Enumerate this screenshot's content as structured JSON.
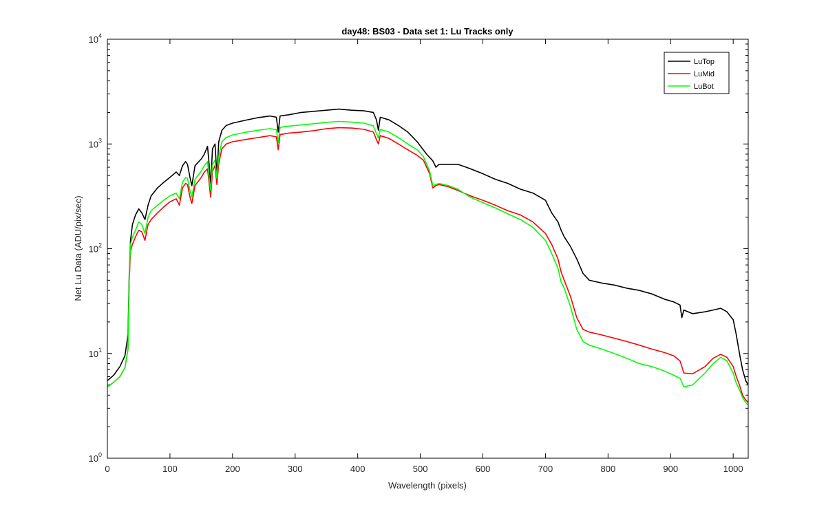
{
  "chart_data": {
    "type": "line",
    "title": "day48: BS03 - Data set 1: Lu Tracks only",
    "xlabel": "Wavelength (pixels)",
    "ylabel": "Net Lu Data (ADU/pix/sec)",
    "xlim": [
      0,
      1024
    ],
    "ylim": [
      1,
      10000
    ],
    "yscale": "log",
    "grid": false,
    "legend_position": "top-right",
    "x_ticks": [
      "0",
      "100",
      "200",
      "300",
      "400",
      "500",
      "600",
      "700",
      "800",
      "900",
      "1000"
    ],
    "y_ticks": [
      {
        "base": "10",
        "exp": "0"
      },
      {
        "base": "10",
        "exp": "1"
      },
      {
        "base": "10",
        "exp": "2"
      },
      {
        "base": "10",
        "exp": "3"
      },
      {
        "base": "10",
        "exp": "4"
      }
    ],
    "series": [
      {
        "name": "LuTop",
        "color": "#000000",
        "points": [
          [
            0,
            5.5
          ],
          [
            10,
            6.2
          ],
          [
            20,
            7.5
          ],
          [
            28,
            9.5
          ],
          [
            33,
            15
          ],
          [
            35,
            60
          ],
          [
            37,
            120
          ],
          [
            40,
            170
          ],
          [
            45,
            210
          ],
          [
            50,
            240
          ],
          [
            55,
            220
          ],
          [
            60,
            190
          ],
          [
            65,
            260
          ],
          [
            70,
            320
          ],
          [
            80,
            380
          ],
          [
            90,
            430
          ],
          [
            100,
            480
          ],
          [
            110,
            540
          ],
          [
            115,
            500
          ],
          [
            120,
            620
          ],
          [
            125,
            680
          ],
          [
            128,
            640
          ],
          [
            132,
            480
          ],
          [
            135,
            400
          ],
          [
            140,
            620
          ],
          [
            150,
            720
          ],
          [
            155,
            800
          ],
          [
            160,
            950
          ],
          [
            163,
            600
          ],
          [
            165,
            400
          ],
          [
            168,
            900
          ],
          [
            172,
            1000
          ],
          [
            175,
            500
          ],
          [
            178,
            1050
          ],
          [
            183,
            1350
          ],
          [
            190,
            1500
          ],
          [
            200,
            1580
          ],
          [
            220,
            1680
          ],
          [
            240,
            1780
          ],
          [
            260,
            1850
          ],
          [
            270,
            1800
          ],
          [
            273,
            1300
          ],
          [
            276,
            1850
          ],
          [
            290,
            1900
          ],
          [
            310,
            2000
          ],
          [
            330,
            2050
          ],
          [
            350,
            2100
          ],
          [
            370,
            2150
          ],
          [
            390,
            2100
          ],
          [
            410,
            2070
          ],
          [
            425,
            2000
          ],
          [
            430,
            1700
          ],
          [
            433,
            1350
          ],
          [
            436,
            1800
          ],
          [
            450,
            1700
          ],
          [
            465,
            1500
          ],
          [
            480,
            1300
          ],
          [
            495,
            1050
          ],
          [
            510,
            800
          ],
          [
            520,
            690
          ],
          [
            525,
            600
          ],
          [
            530,
            640
          ],
          [
            545,
            640
          ],
          [
            560,
            640
          ],
          [
            580,
            580
          ],
          [
            600,
            520
          ],
          [
            620,
            460
          ],
          [
            640,
            420
          ],
          [
            660,
            370
          ],
          [
            680,
            340
          ],
          [
            700,
            290
          ],
          [
            710,
            220
          ],
          [
            720,
            180
          ],
          [
            725,
            150
          ],
          [
            730,
            130
          ],
          [
            740,
            105
          ],
          [
            750,
            80
          ],
          [
            760,
            58
          ],
          [
            770,
            50
          ],
          [
            790,
            47
          ],
          [
            810,
            45
          ],
          [
            830,
            42
          ],
          [
            850,
            40
          ],
          [
            870,
            37
          ],
          [
            890,
            33
          ],
          [
            905,
            31
          ],
          [
            915,
            29
          ],
          [
            918,
            22
          ],
          [
            921,
            26
          ],
          [
            935,
            24
          ],
          [
            955,
            25
          ],
          [
            968,
            26
          ],
          [
            980,
            27
          ],
          [
            990,
            25
          ],
          [
            1000,
            21
          ],
          [
            1005,
            15
          ],
          [
            1010,
            10
          ],
          [
            1015,
            7
          ],
          [
            1020,
            5.5
          ],
          [
            1024,
            5
          ]
        ]
      },
      {
        "name": "LuMid",
        "color": "#ff0000",
        "points": [
          [
            0,
            4.8
          ],
          [
            10,
            5.3
          ],
          [
            20,
            6
          ],
          [
            28,
            7.3
          ],
          [
            33,
            11
          ],
          [
            35,
            50
          ],
          [
            37,
            95
          ],
          [
            40,
            110
          ],
          [
            45,
            130
          ],
          [
            50,
            150
          ],
          [
            55,
            145
          ],
          [
            60,
            120
          ],
          [
            65,
            170
          ],
          [
            70,
            190
          ],
          [
            80,
            220
          ],
          [
            90,
            250
          ],
          [
            100,
            280
          ],
          [
            110,
            300
          ],
          [
            115,
            260
          ],
          [
            120,
            380
          ],
          [
            125,
            420
          ],
          [
            128,
            410
          ],
          [
            132,
            310
          ],
          [
            135,
            270
          ],
          [
            140,
            400
          ],
          [
            150,
            480
          ],
          [
            155,
            540
          ],
          [
            160,
            580
          ],
          [
            163,
            400
          ],
          [
            165,
            310
          ],
          [
            168,
            550
          ],
          [
            172,
            620
          ],
          [
            175,
            410
          ],
          [
            178,
            650
          ],
          [
            183,
            900
          ],
          [
            190,
            1000
          ],
          [
            200,
            1050
          ],
          [
            220,
            1100
          ],
          [
            240,
            1150
          ],
          [
            260,
            1200
          ],
          [
            270,
            1170
          ],
          [
            273,
            880
          ],
          [
            276,
            1230
          ],
          [
            290,
            1270
          ],
          [
            310,
            1300
          ],
          [
            330,
            1340
          ],
          [
            350,
            1400
          ],
          [
            370,
            1430
          ],
          [
            390,
            1420
          ],
          [
            410,
            1380
          ],
          [
            425,
            1300
          ],
          [
            430,
            1100
          ],
          [
            433,
            1000
          ],
          [
            436,
            1200
          ],
          [
            450,
            1130
          ],
          [
            465,
            1000
          ],
          [
            480,
            880
          ],
          [
            495,
            780
          ],
          [
            505,
            700
          ],
          [
            515,
            520
          ],
          [
            520,
            380
          ],
          [
            525,
            400
          ],
          [
            530,
            410
          ],
          [
            545,
            390
          ],
          [
            560,
            360
          ],
          [
            580,
            320
          ],
          [
            600,
            290
          ],
          [
            620,
            260
          ],
          [
            640,
            230
          ],
          [
            660,
            210
          ],
          [
            680,
            180
          ],
          [
            700,
            140
          ],
          [
            710,
            110
          ],
          [
            720,
            80
          ],
          [
            725,
            60
          ],
          [
            730,
            50
          ],
          [
            740,
            35
          ],
          [
            750,
            22
          ],
          [
            760,
            17
          ],
          [
            770,
            16
          ],
          [
            790,
            15
          ],
          [
            810,
            14
          ],
          [
            830,
            13
          ],
          [
            850,
            12
          ],
          [
            870,
            11
          ],
          [
            890,
            10.2
          ],
          [
            905,
            9.5
          ],
          [
            915,
            8.5
          ],
          [
            918,
            7.5
          ],
          [
            921,
            6.5
          ],
          [
            935,
            6.4
          ],
          [
            955,
            7.5
          ],
          [
            968,
            9
          ],
          [
            980,
            9.8
          ],
          [
            990,
            9.2
          ],
          [
            1000,
            7.5
          ],
          [
            1005,
            6
          ],
          [
            1010,
            5
          ],
          [
            1015,
            4
          ],
          [
            1020,
            3.6
          ],
          [
            1024,
            3.4
          ]
        ]
      },
      {
        "name": "LuBot",
        "color": "#00ff00",
        "points": [
          [
            0,
            4.8
          ],
          [
            10,
            5.3
          ],
          [
            20,
            6
          ],
          [
            28,
            7.3
          ],
          [
            33,
            11
          ],
          [
            35,
            55
          ],
          [
            37,
            110
          ],
          [
            40,
            130
          ],
          [
            45,
            150
          ],
          [
            50,
            180
          ],
          [
            55,
            170
          ],
          [
            60,
            140
          ],
          [
            65,
            200
          ],
          [
            70,
            230
          ],
          [
            80,
            260
          ],
          [
            90,
            290
          ],
          [
            100,
            320
          ],
          [
            110,
            340
          ],
          [
            115,
            300
          ],
          [
            120,
            430
          ],
          [
            125,
            480
          ],
          [
            128,
            470
          ],
          [
            132,
            360
          ],
          [
            135,
            310
          ],
          [
            140,
            460
          ],
          [
            150,
            550
          ],
          [
            155,
            620
          ],
          [
            160,
            680
          ],
          [
            163,
            450
          ],
          [
            165,
            360
          ],
          [
            168,
            640
          ],
          [
            172,
            700
          ],
          [
            175,
            470
          ],
          [
            178,
            760
          ],
          [
            183,
            1050
          ],
          [
            190,
            1150
          ],
          [
            200,
            1220
          ],
          [
            220,
            1290
          ],
          [
            240,
            1350
          ],
          [
            260,
            1400
          ],
          [
            270,
            1370
          ],
          [
            273,
            1030
          ],
          [
            276,
            1440
          ],
          [
            290,
            1480
          ],
          [
            310,
            1520
          ],
          [
            330,
            1560
          ],
          [
            350,
            1610
          ],
          [
            370,
            1640
          ],
          [
            390,
            1620
          ],
          [
            410,
            1580
          ],
          [
            425,
            1490
          ],
          [
            430,
            1260
          ],
          [
            433,
            1140
          ],
          [
            436,
            1380
          ],
          [
            450,
            1300
          ],
          [
            465,
            1150
          ],
          [
            480,
            1000
          ],
          [
            495,
            880
          ],
          [
            505,
            760
          ],
          [
            515,
            550
          ],
          [
            520,
            400
          ],
          [
            525,
            410
          ],
          [
            530,
            420
          ],
          [
            545,
            400
          ],
          [
            560,
            370
          ],
          [
            580,
            310
          ],
          [
            600,
            275
          ],
          [
            620,
            245
          ],
          [
            640,
            215
          ],
          [
            660,
            190
          ],
          [
            680,
            160
          ],
          [
            700,
            120
          ],
          [
            710,
            90
          ],
          [
            720,
            65
          ],
          [
            725,
            48
          ],
          [
            730,
            42
          ],
          [
            740,
            28
          ],
          [
            750,
            17
          ],
          [
            760,
            13
          ],
          [
            770,
            12
          ],
          [
            790,
            11
          ],
          [
            810,
            10
          ],
          [
            830,
            9
          ],
          [
            850,
            8
          ],
          [
            870,
            7.5
          ],
          [
            890,
            6.8
          ],
          [
            905,
            6.2
          ],
          [
            915,
            5.8
          ],
          [
            918,
            5.3
          ],
          [
            921,
            4.8
          ],
          [
            935,
            5
          ],
          [
            955,
            6.5
          ],
          [
            968,
            8
          ],
          [
            980,
            9.2
          ],
          [
            990,
            8.5
          ],
          [
            1000,
            6.5
          ],
          [
            1005,
            5.2
          ],
          [
            1010,
            4.5
          ],
          [
            1015,
            3.8
          ],
          [
            1020,
            3.4
          ],
          [
            1024,
            3.2
          ]
        ]
      }
    ]
  }
}
